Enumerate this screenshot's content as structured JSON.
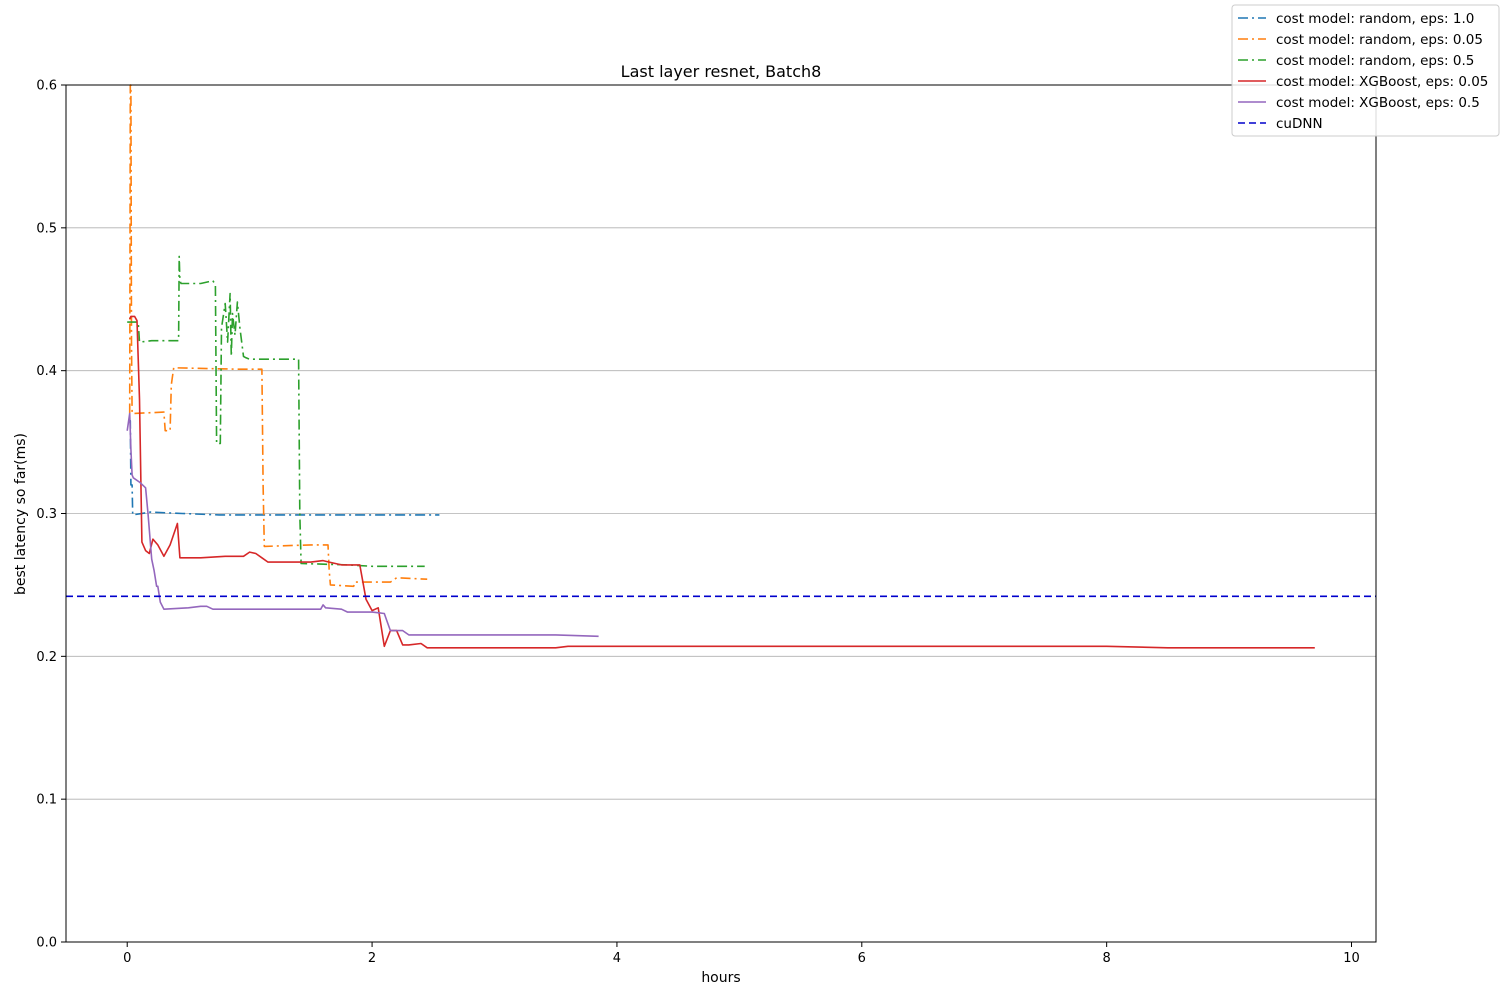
{
  "chart_data": {
    "type": "line",
    "title": "Last layer resnet, Batch8",
    "xlabel": "hours",
    "ylabel": "best latency so far(ms)",
    "xlim": [
      -0.5,
      10.2
    ],
    "ylim": [
      0.0,
      0.6
    ],
    "xticks": [
      0,
      2,
      4,
      6,
      8,
      10
    ],
    "xtick_labels": [
      "0",
      "2",
      "4",
      "6",
      "8",
      "10"
    ],
    "yticks": [
      0.0,
      0.1,
      0.2,
      0.3,
      0.4,
      0.5,
      0.6
    ],
    "ytick_labels": [
      "0.0",
      "0.1",
      "0.2",
      "0.3",
      "0.4",
      "0.5",
      "0.6"
    ],
    "grid": "horizontal",
    "legend_position": "top-right",
    "series": [
      {
        "name": "cost model: random, eps: 1.0",
        "color": "#1f77b4",
        "dash": "dashdot",
        "x": [
          0.01,
          0.025,
          0.03,
          0.04,
          0.045,
          0.19,
          0.45,
          0.75,
          1.0,
          1.5,
          2.0,
          2.55
        ],
        "y": [
          0.365,
          0.365,
          0.32,
          0.32,
          0.299,
          0.301,
          0.3,
          0.299,
          0.299,
          0.299,
          0.299,
          0.299
        ]
      },
      {
        "name": "cost model: random, eps: 0.05",
        "color": "#ff7f0e",
        "dash": "dashdot",
        "x": [
          0.02,
          0.025,
          0.03,
          0.035,
          0.04,
          0.3,
          0.31,
          0.35,
          0.36,
          0.38,
          0.9,
          1.1,
          1.11,
          1.12,
          1.5,
          1.64,
          1.65,
          1.66,
          1.85,
          1.86,
          2.15,
          2.2,
          2.45
        ],
        "y": [
          0.37,
          0.6,
          0.6,
          0.42,
          0.37,
          0.371,
          0.358,
          0.358,
          0.39,
          0.402,
          0.401,
          0.401,
          0.32,
          0.277,
          0.278,
          0.278,
          0.26,
          0.25,
          0.249,
          0.252,
          0.252,
          0.255,
          0.254
        ]
      },
      {
        "name": "cost model: random, eps: 0.5",
        "color": "#2ca02c",
        "dash": "dashdot",
        "x": [
          0.0,
          0.09,
          0.1,
          0.2,
          0.42,
          0.425,
          0.43,
          0.44,
          0.6,
          0.7,
          0.72,
          0.73,
          0.76,
          0.77,
          0.8,
          0.82,
          0.84,
          0.85,
          0.86,
          0.88,
          0.9,
          0.92,
          0.95,
          0.97,
          1.0,
          1.4,
          1.41,
          1.42,
          1.8,
          2.0,
          2.1,
          2.43
        ],
        "y": [
          0.434,
          0.434,
          0.42,
          0.421,
          0.421,
          0.48,
          0.463,
          0.461,
          0.461,
          0.463,
          0.46,
          0.349,
          0.349,
          0.43,
          0.447,
          0.42,
          0.454,
          0.41,
          0.44,
          0.425,
          0.448,
          0.43,
          0.41,
          0.409,
          0.408,
          0.408,
          0.3,
          0.265,
          0.264,
          0.263,
          0.263,
          0.263
        ]
      },
      {
        "name": "cost model: XGBoost, eps: 0.05",
        "color": "#d62728",
        "dash": "solid",
        "x": [
          0.02,
          0.03,
          0.06,
          0.08,
          0.1,
          0.12,
          0.15,
          0.18,
          0.21,
          0.25,
          0.3,
          0.35,
          0.41,
          0.43,
          0.6,
          0.8,
          0.95,
          1.0,
          1.05,
          1.1,
          1.15,
          1.2,
          1.5,
          1.6,
          1.65,
          1.75,
          1.9,
          1.95,
          2.0,
          2.05,
          2.1,
          2.15,
          2.2,
          2.25,
          2.3,
          2.4,
          2.45,
          2.5,
          3.0,
          3.5,
          3.6,
          4.0,
          4.5,
          5.0,
          5.5,
          6.0,
          6.5,
          7.0,
          7.5,
          8.0,
          8.5,
          8.8,
          9.0,
          9.5,
          9.7
        ],
        "y": [
          0.436,
          0.438,
          0.438,
          0.435,
          0.38,
          0.28,
          0.274,
          0.272,
          0.282,
          0.278,
          0.27,
          0.278,
          0.293,
          0.269,
          0.269,
          0.27,
          0.27,
          0.273,
          0.272,
          0.269,
          0.266,
          0.266,
          0.266,
          0.267,
          0.266,
          0.264,
          0.264,
          0.24,
          0.232,
          0.234,
          0.207,
          0.218,
          0.218,
          0.208,
          0.208,
          0.209,
          0.206,
          0.206,
          0.206,
          0.206,
          0.207,
          0.207,
          0.207,
          0.207,
          0.207,
          0.207,
          0.207,
          0.207,
          0.207,
          0.207,
          0.206,
          0.206,
          0.206,
          0.206,
          0.206
        ]
      },
      {
        "name": "cost model: XGBoost, eps: 0.5",
        "color": "#9467bd",
        "dash": "solid",
        "x": [
          0.0,
          0.02,
          0.03,
          0.04,
          0.05,
          0.1,
          0.15,
          0.17,
          0.2,
          0.22,
          0.24,
          0.25,
          0.27,
          0.3,
          0.5,
          0.6,
          0.65,
          0.7,
          1.0,
          1.5,
          1.58,
          1.6,
          1.62,
          1.75,
          1.8,
          2.0,
          2.1,
          2.12,
          2.15,
          2.25,
          2.3,
          2.5,
          3.0,
          3.5,
          3.85
        ],
        "y": [
          0.358,
          0.37,
          0.345,
          0.327,
          0.325,
          0.322,
          0.318,
          0.3,
          0.268,
          0.26,
          0.249,
          0.249,
          0.238,
          0.233,
          0.234,
          0.235,
          0.235,
          0.233,
          0.233,
          0.233,
          0.233,
          0.236,
          0.234,
          0.233,
          0.231,
          0.231,
          0.23,
          0.225,
          0.218,
          0.218,
          0.215,
          0.215,
          0.215,
          0.215,
          0.214
        ]
      },
      {
        "name": "cuDNN",
        "color": "#0000cc",
        "dash": "dashed",
        "x": [
          -0.5,
          10.2
        ],
        "y": [
          0.242,
          0.242
        ]
      }
    ]
  }
}
